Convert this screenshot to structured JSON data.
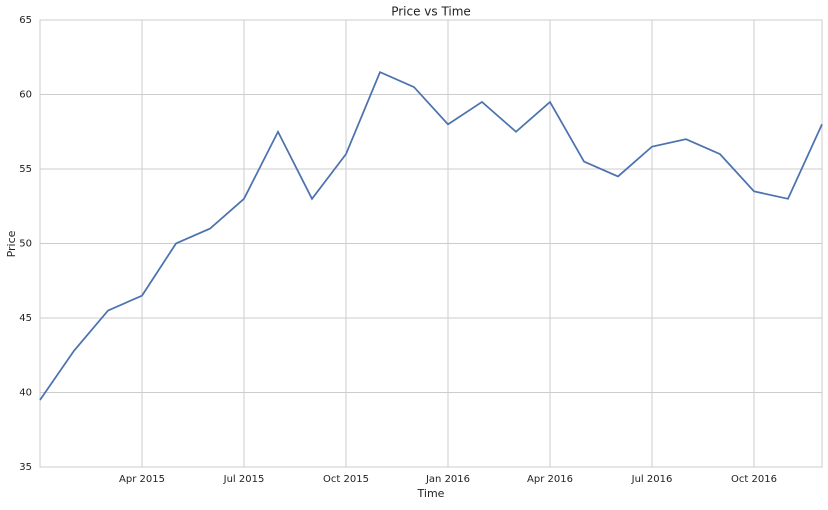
{
  "chart_data": {
    "type": "line",
    "title": "Price vs Time",
    "x_label": "Time",
    "y_label": "Price",
    "x": [
      "2015-01",
      "2015-02",
      "2015-03",
      "2015-04",
      "2015-05",
      "2015-06",
      "2015-07",
      "2015-08",
      "2015-09",
      "2015-10",
      "2015-11",
      "2015-12",
      "2016-01",
      "2016-02",
      "2016-03",
      "2016-04",
      "2016-05",
      "2016-06",
      "2016-07",
      "2016-08",
      "2016-09",
      "2016-10",
      "2016-11",
      "2016-12"
    ],
    "series": [
      {
        "name": "Price",
        "color": "#4c72b0",
        "values": [
          39.5,
          42.8,
          45.5,
          46.5,
          50,
          51,
          53,
          57.5,
          53,
          56,
          61.5,
          60.5,
          58,
          59.5,
          57.5,
          59.5,
          55.5,
          54.5,
          56.5,
          57,
          56,
          53.5,
          53,
          58
        ]
      }
    ],
    "xlim": [
      "2015-01",
      "2016-12"
    ],
    "xticks": [
      {
        "value": "2015-04",
        "label": "Apr 2015"
      },
      {
        "value": "2015-07",
        "label": "Jul 2015"
      },
      {
        "value": "2015-10",
        "label": "Oct 2015"
      },
      {
        "value": "2016-01",
        "label": "Jan 2016"
      },
      {
        "value": "2016-04",
        "label": "Apr 2016"
      },
      {
        "value": "2016-07",
        "label": "Jul 2016"
      },
      {
        "value": "2016-10",
        "label": "Oct 2016"
      }
    ],
    "ylim": [
      35,
      65
    ],
    "yticks": [
      35,
      40,
      45,
      50,
      55,
      60,
      65
    ],
    "grid": true
  }
}
